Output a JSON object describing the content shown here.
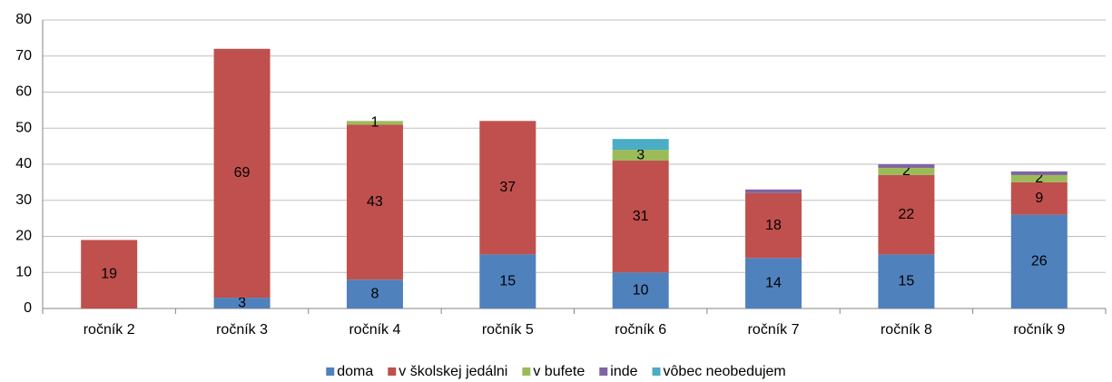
{
  "chart_data": {
    "type": "stacked_bar",
    "categories": [
      "ročník 2",
      "ročník 3",
      "ročník 4",
      "ročník 5",
      "ročník 6",
      "ročník 7",
      "ročník 8",
      "ročník 9"
    ],
    "series": [
      {
        "name": "doma",
        "color": "#4f81bd",
        "values": [
          0,
          3,
          8,
          15,
          10,
          14,
          15,
          26
        ],
        "data_labels": true
      },
      {
        "name": "v školskej jedálni",
        "color": "#c0504d",
        "values": [
          19,
          69,
          43,
          37,
          31,
          18,
          22,
          9
        ],
        "data_labels": true
      },
      {
        "name": "v bufete",
        "color": "#9bbb59",
        "values": [
          0,
          0,
          1,
          0,
          3,
          0,
          2,
          2
        ],
        "data_labels": true
      },
      {
        "name": "inde",
        "color": "#8064a2",
        "values": [
          0,
          0,
          0,
          0,
          0,
          1,
          1,
          1
        ],
        "data_labels": false
      },
      {
        "name": "vôbec neobedujem",
        "color": "#4bacc6",
        "values": [
          0,
          0,
          0,
          0,
          3,
          0,
          0,
          0
        ],
        "data_labels": false
      }
    ],
    "ylim": [
      0,
      80
    ],
    "yticks": [
      0,
      10,
      20,
      30,
      40,
      50,
      60,
      70,
      80
    ],
    "grid": true,
    "legend": "bottom"
  }
}
